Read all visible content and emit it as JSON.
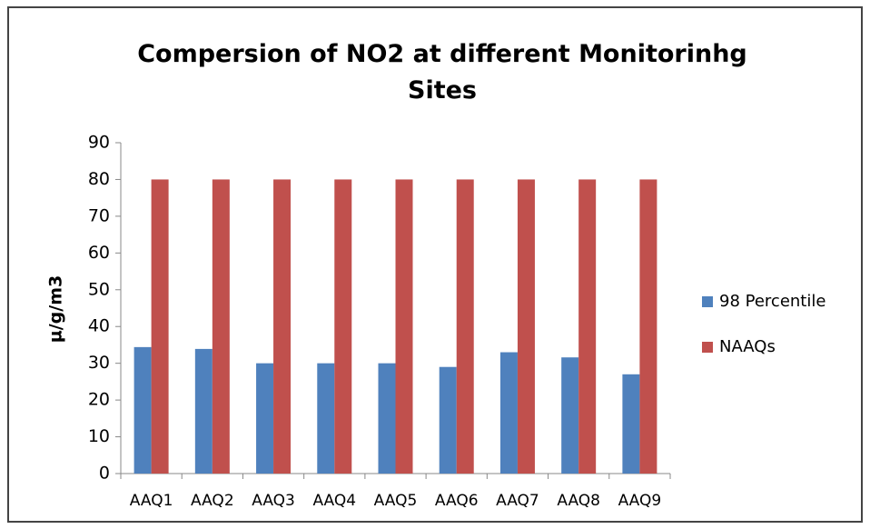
{
  "chart_data": {
    "type": "bar",
    "title": "Compersion of NO2 at different Monitorinhg Sites",
    "y_label": "µ/g/m3",
    "categories": [
      "AAQ1",
      "AAQ2",
      "AAQ3",
      "AAQ4",
      "AAQ5",
      "AAQ6",
      "AAQ7",
      "AAQ8",
      "AAQ9"
    ],
    "series": [
      {
        "name": "98 Percentile",
        "color": "#4f81bd",
        "values": [
          34.4,
          33.9,
          30,
          30,
          30,
          29,
          33,
          31.6,
          27
        ]
      },
      {
        "name": "NAAQs",
        "color": "#c0504d",
        "values": [
          80,
          80,
          80,
          80,
          80,
          80,
          80,
          80,
          80
        ]
      }
    ],
    "ylim": [
      0,
      90
    ],
    "yticks": [
      0,
      10,
      20,
      30,
      40,
      50,
      60,
      70,
      80,
      90
    ],
    "legend": "right"
  }
}
